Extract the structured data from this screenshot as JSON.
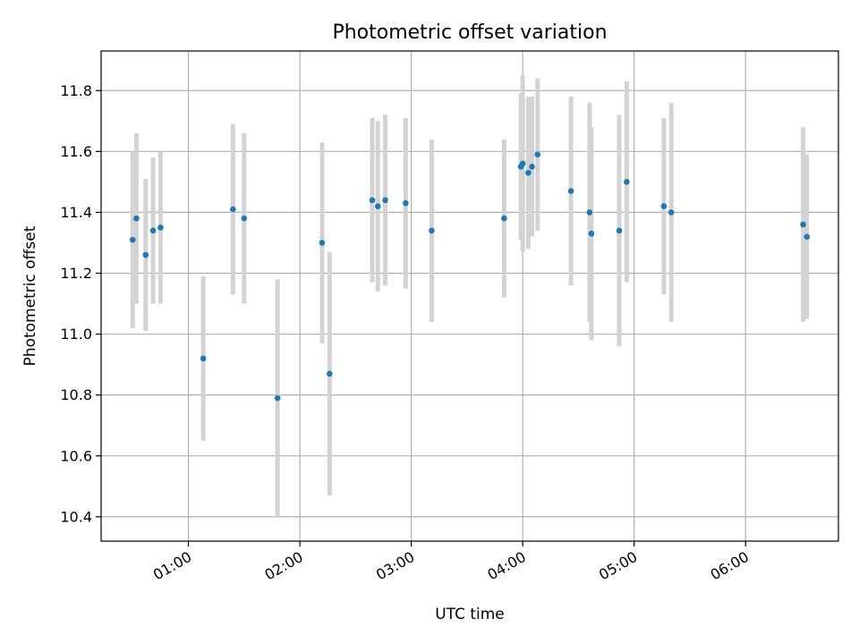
{
  "chart_data": {
    "type": "scatter",
    "title": "Photometric offset variation",
    "xlabel": "UTC time",
    "ylabel": "Photometric offset",
    "xlim": [
      "00:13",
      "06:50"
    ],
    "ylim": [
      10.32,
      11.93
    ],
    "x_ticks": [
      "01:00",
      "02:00",
      "03:00",
      "04:00",
      "05:00",
      "06:00"
    ],
    "y_ticks": [
      "10.4",
      "10.6",
      "10.8",
      "11.0",
      "11.2",
      "11.4",
      "11.6",
      "11.8"
    ],
    "grid": true,
    "marker_color": "#1f77b4",
    "errorbar_color": "#d3d3d3",
    "points": [
      {
        "time": "00:30",
        "y": 11.31,
        "err": 0.29
      },
      {
        "time": "00:32",
        "y": 11.38,
        "err": 0.28
      },
      {
        "time": "00:37",
        "y": 11.26,
        "err": 0.25
      },
      {
        "time": "00:41",
        "y": 11.34,
        "err": 0.24
      },
      {
        "time": "00:45",
        "y": 11.35,
        "err": 0.25
      },
      {
        "time": "01:08",
        "y": 10.92,
        "err": 0.27
      },
      {
        "time": "01:24",
        "y": 11.41,
        "err": 0.28
      },
      {
        "time": "01:30",
        "y": 11.38,
        "err": 0.28
      },
      {
        "time": "01:48",
        "y": 10.79,
        "err": 0.39
      },
      {
        "time": "02:12",
        "y": 11.3,
        "err": 0.33
      },
      {
        "time": "02:16",
        "y": 10.87,
        "err": 0.4
      },
      {
        "time": "02:39",
        "y": 11.44,
        "err": 0.27
      },
      {
        "time": "02:42",
        "y": 11.42,
        "err": 0.28
      },
      {
        "time": "02:46",
        "y": 11.44,
        "err": 0.28
      },
      {
        "time": "02:57",
        "y": 11.43,
        "err": 0.28
      },
      {
        "time": "03:11",
        "y": 11.34,
        "err": 0.3
      },
      {
        "time": "03:50",
        "y": 11.38,
        "err": 0.26
      },
      {
        "time": "03:59",
        "y": 11.55,
        "err": 0.24
      },
      {
        "time": "04:00",
        "y": 11.56,
        "err": 0.29
      },
      {
        "time": "04:03",
        "y": 11.53,
        "err": 0.25
      },
      {
        "time": "04:05",
        "y": 11.55,
        "err": 0.23
      },
      {
        "time": "04:08",
        "y": 11.59,
        "err": 0.25
      },
      {
        "time": "04:26",
        "y": 11.47,
        "err": 0.31
      },
      {
        "time": "04:36",
        "y": 11.4,
        "err": 0.36
      },
      {
        "time": "04:37",
        "y": 11.33,
        "err": 0.35
      },
      {
        "time": "04:52",
        "y": 11.34,
        "err": 0.38
      },
      {
        "time": "04:56",
        "y": 11.5,
        "err": 0.33
      },
      {
        "time": "05:16",
        "y": 11.42,
        "err": 0.29
      },
      {
        "time": "05:20",
        "y": 11.4,
        "err": 0.36
      },
      {
        "time": "06:31",
        "y": 11.36,
        "err": 0.32
      },
      {
        "time": "06:33",
        "y": 11.32,
        "err": 0.27
      }
    ]
  }
}
